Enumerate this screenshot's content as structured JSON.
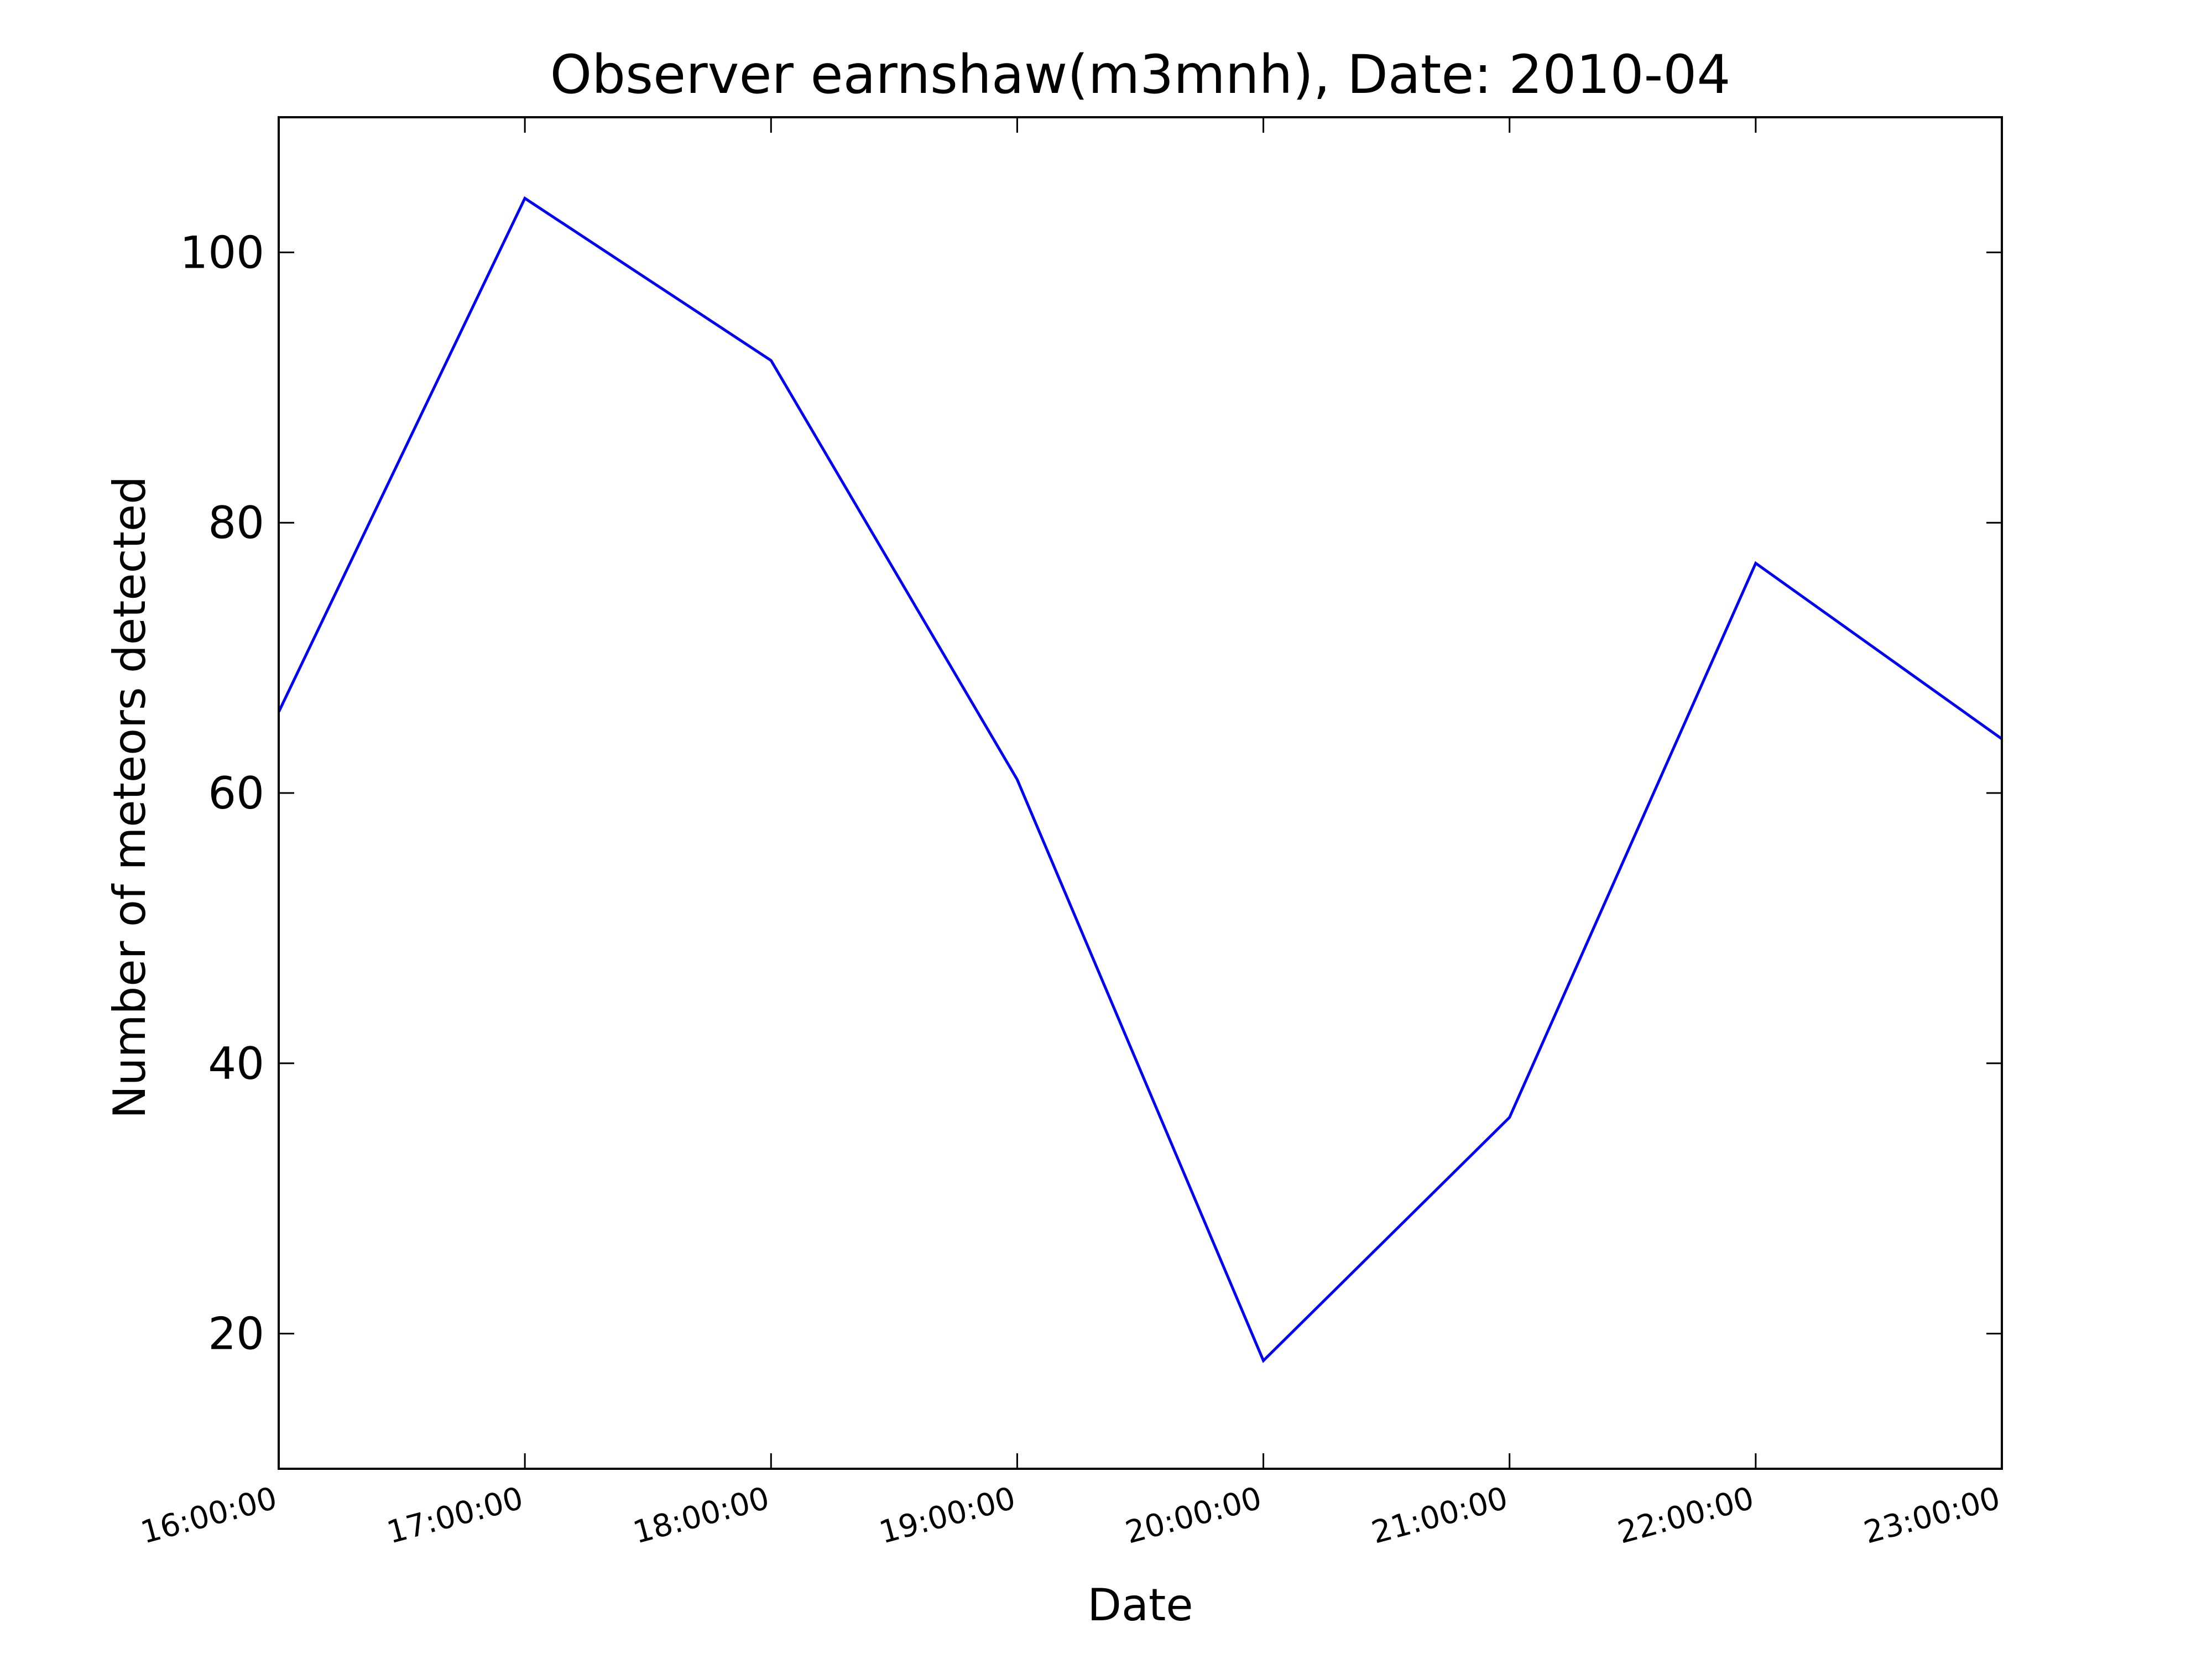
{
  "chart_data": {
    "type": "line",
    "title": "Observer earnshaw(m3mnh), Date: 2010-04",
    "xlabel": "Date",
    "ylabel": "Number of meteors detected",
    "categories": [
      "16:00:00",
      "17:00:00",
      "18:00:00",
      "19:00:00",
      "20:00:00",
      "21:00:00",
      "22:00:00",
      "23:00:00"
    ],
    "series": [
      {
        "values": [
          66,
          104,
          92,
          61,
          18,
          36,
          77,
          64
        ]
      }
    ],
    "ylim": [
      10,
      110
    ],
    "yticks": [
      20,
      40,
      60,
      80,
      100
    ],
    "xtick_rotation_deg": 15,
    "grid": false,
    "legend": "none",
    "colors": {
      "line": "#0000ff",
      "axes": "#000000",
      "background": "#ffffff"
    }
  }
}
